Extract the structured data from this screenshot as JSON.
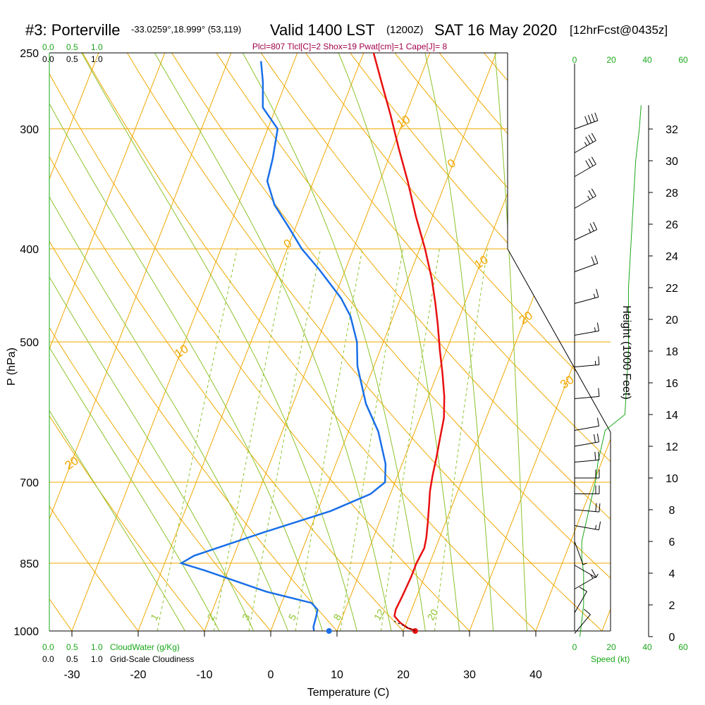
{
  "header": {
    "station": "#3: Porterville",
    "coords": "-33.0259°,18.999° (53,119)",
    "valid": "Valid 1400 LST",
    "utc": "(1200Z)",
    "date": "SAT 16 May 2020",
    "forecast": "[12hrFcst@0435z]",
    "indices": "Plcl=807 Tlcl[C]=2 Shox=19 Pwat[cm]=1 Cape[J]= 8"
  },
  "scales": {
    "cloudwater_ticks": [
      "0.0",
      "0.5",
      "1.0"
    ],
    "cloudiness_ticks": [
      "0.0",
      "0.5",
      "1.0"
    ],
    "cloudwater_label": "CloudWater (g/Kg)",
    "cloudiness_label": "Grid-Scale Cloudiness",
    "speed_ticks": [
      "0",
      "20",
      "40",
      "60"
    ],
    "speed_label": "Speed (kt)"
  },
  "colors": {
    "temperature": "#e81010",
    "dewpoint": "#1a6fe8",
    "isotherm": "#f0a800",
    "dry_adiabat": "#f0a800",
    "moist_adiabat": "#8cc22a",
    "mixing_ratio": "#8cc22a",
    "speed": "#1aa81a",
    "indices": "#a0004a"
  },
  "chart_data": {
    "type": "line",
    "title": "#3: Porterville",
    "xlabel": "Temperature (C)",
    "ylabel": "P (hPa)",
    "y2label": "Height (1000 Feet)",
    "x_ticks": [
      -30,
      -20,
      -10,
      0,
      10,
      20,
      30,
      40
    ],
    "pressure_ticks": [
      250,
      300,
      400,
      500,
      700,
      850,
      1000
    ],
    "height_ticks": [
      0,
      2,
      4,
      6,
      8,
      10,
      12,
      14,
      16,
      18,
      20,
      22,
      24,
      26,
      28,
      30,
      32
    ],
    "temperature_range": [
      -35,
      52
    ],
    "isotherm_labels": [
      {
        "temp": 0,
        "pressure": 330,
        "text": "0"
      },
      {
        "temp": 10,
        "pressure": 420,
        "text": "10"
      },
      {
        "temp": 20,
        "pressure": 480,
        "text": "20"
      },
      {
        "temp": 30,
        "pressure": 560,
        "text": "30"
      },
      {
        "temp": -10,
        "pressure": 300,
        "text": "10"
      },
      {
        "temp": -20,
        "pressure": 400,
        "text": "0"
      },
      {
        "temp": -30,
        "pressure": 520,
        "text": "10"
      },
      {
        "temp": -40,
        "pressure": 680,
        "text": "20"
      },
      {
        "temp": -50,
        "pressure": 890,
        "text": "30"
      }
    ],
    "mixing_ratio_labels": [
      "1",
      "2",
      "3",
      "5",
      "8",
      "12",
      "20"
    ],
    "mixing_ratios": [
      1,
      2,
      3,
      5,
      8,
      12,
      20
    ],
    "series": [
      {
        "name": "temperature",
        "points": [
          [
            21.8,
            999
          ],
          [
            20.5,
            993
          ],
          [
            19.0,
            980
          ],
          [
            17.8,
            965
          ],
          [
            17.6,
            950
          ],
          [
            17.8,
            920
          ],
          [
            18.0,
            880
          ],
          [
            18.0,
            850
          ],
          [
            18.3,
            820
          ],
          [
            18.0,
            800
          ],
          [
            17.3,
            770
          ],
          [
            16.5,
            740
          ],
          [
            15.8,
            715
          ],
          [
            15.3,
            690
          ],
          [
            14.8,
            660
          ],
          [
            14.2,
            630
          ],
          [
            13.6,
            600
          ],
          [
            12.4,
            570
          ],
          [
            10.8,
            540
          ],
          [
            9.0,
            510
          ],
          [
            7.2,
            480
          ],
          [
            5.5,
            455
          ],
          [
            3.6,
            430
          ],
          [
            0.8,
            400
          ],
          [
            -2.5,
            370
          ],
          [
            -5.8,
            340
          ],
          [
            -9.0,
            315
          ],
          [
            -12.3,
            290
          ],
          [
            -15.3,
            270
          ],
          [
            -18.5,
            250
          ],
          [
            -20.0,
            243
          ]
        ]
      },
      {
        "name": "dewpoint",
        "points": [
          [
            6.5,
            999
          ],
          [
            6.2,
            990
          ],
          [
            6.0,
            965
          ],
          [
            5.8,
            950
          ],
          [
            4.5,
            935
          ],
          [
            -3.0,
            910
          ],
          [
            -13.5,
            865
          ],
          [
            -17.5,
            850
          ],
          [
            -16.0,
            835
          ],
          [
            -7.0,
            790
          ],
          [
            2.0,
            750
          ],
          [
            7.0,
            720
          ],
          [
            8.5,
            700
          ],
          [
            7.5,
            670
          ],
          [
            4.5,
            620
          ],
          [
            1.0,
            580
          ],
          [
            -2.5,
            530
          ],
          [
            -4.0,
            500
          ],
          [
            -6.5,
            470
          ],
          [
            -9.0,
            450
          ],
          [
            -14.0,
            420
          ],
          [
            -17.8,
            400
          ],
          [
            -21.0,
            380
          ],
          [
            -24.5,
            360
          ],
          [
            -27.0,
            340
          ],
          [
            -27.5,
            322
          ],
          [
            -28.5,
            300
          ],
          [
            -32.0,
            285
          ],
          [
            -33.5,
            268
          ],
          [
            -35.0,
            255
          ]
        ]
      }
    ],
    "surface_temperature": {
      "temp": 21.8,
      "pressure": 1000
    },
    "surface_dewpoint": {
      "temp": 8.8,
      "pressure": 1000
    },
    "parcel": [
      [
        21.8,
        1000
      ],
      [
        20.5,
        992
      ],
      [
        19.0,
        983
      ],
      [
        17.8,
        975
      ]
    ],
    "wind_barbs": [
      {
        "height_kft": 0.2,
        "speed": 10,
        "dir": 320
      },
      {
        "height_kft": 1.5,
        "speed": 12,
        "dir": 330
      },
      {
        "height_kft": 3.0,
        "speed": 15,
        "dir": 300
      },
      {
        "height_kft": 4.5,
        "speed": 5,
        "dir": 240
      },
      {
        "height_kft": 6.0,
        "speed": 5,
        "dir": 200
      },
      {
        "height_kft": 7.0,
        "speed": 15,
        "dir": 260
      },
      {
        "height_kft": 8.0,
        "speed": 20,
        "dir": 265
      },
      {
        "height_kft": 9.0,
        "speed": 20,
        "dir": 270
      },
      {
        "height_kft": 10.0,
        "speed": 20,
        "dir": 270
      },
      {
        "height_kft": 11.0,
        "speed": 20,
        "dir": 275
      },
      {
        "height_kft": 12.0,
        "speed": 20,
        "dir": 280
      },
      {
        "height_kft": 13.0,
        "speed": 10,
        "dir": 280
      },
      {
        "height_kft": 15.0,
        "speed": 10,
        "dir": 275
      },
      {
        "height_kft": 17.0,
        "speed": 15,
        "dir": 275
      },
      {
        "height_kft": 19.0,
        "speed": 15,
        "dir": 280
      },
      {
        "height_kft": 21.0,
        "speed": 15,
        "dir": 285
      },
      {
        "height_kft": 23.0,
        "speed": 20,
        "dir": 290
      },
      {
        "height_kft": 25.0,
        "speed": 25,
        "dir": 295
      },
      {
        "height_kft": 27.0,
        "speed": 25,
        "dir": 300
      },
      {
        "height_kft": 29.0,
        "speed": 30,
        "dir": 300
      },
      {
        "height_kft": 30.5,
        "speed": 35,
        "dir": 300
      },
      {
        "height_kft": 32.0,
        "speed": 40,
        "dir": 290
      }
    ],
    "speed_profile": [
      [
        3,
        0
      ],
      [
        4,
        1
      ],
      [
        5,
        2
      ],
      [
        5,
        3
      ],
      [
        5,
        4
      ],
      [
        4,
        5
      ],
      [
        4,
        6
      ],
      [
        6,
        7
      ],
      [
        8,
        8
      ],
      [
        10,
        9
      ],
      [
        12,
        10
      ],
      [
        13,
        11
      ],
      [
        15,
        12
      ],
      [
        17,
        13
      ],
      [
        28,
        14
      ],
      [
        29,
        16
      ],
      [
        30,
        18
      ],
      [
        30,
        20
      ],
      [
        30,
        22
      ],
      [
        31,
        24
      ],
      [
        32,
        26
      ],
      [
        33,
        28
      ],
      [
        34,
        30
      ],
      [
        36,
        32
      ],
      [
        37,
        33.5
      ]
    ]
  }
}
